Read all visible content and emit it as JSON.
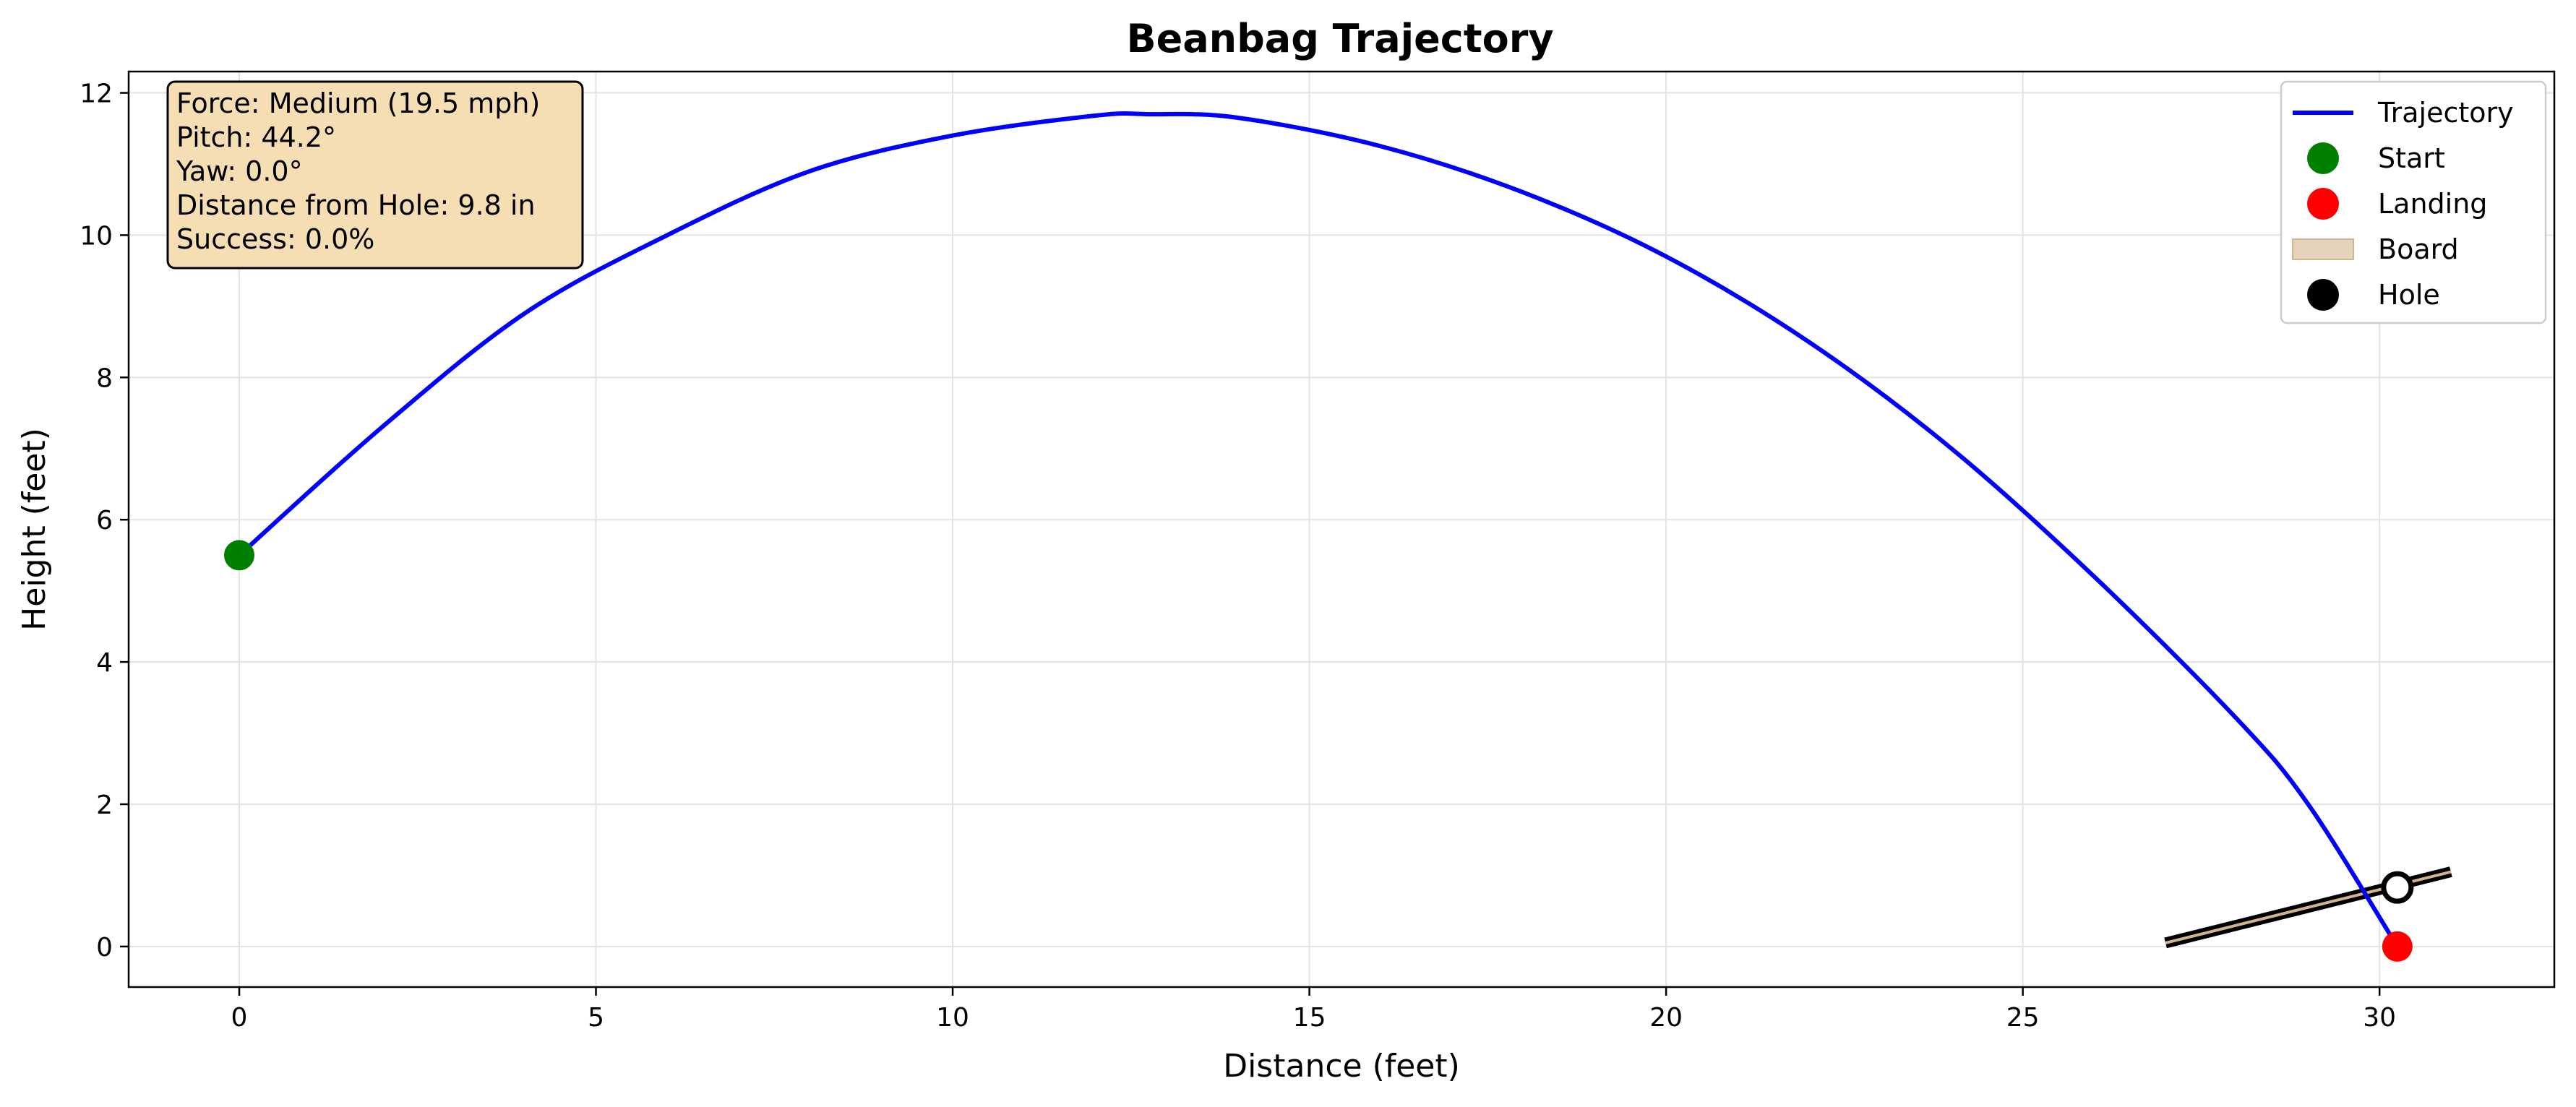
{
  "chart_data": {
    "type": "line",
    "title": "Beanbag Trajectory",
    "xlabel": "Distance (feet)",
    "ylabel": "Height (feet)",
    "xlim": [
      -1.55,
      32.45
    ],
    "ylim": [
      -0.57,
      12.3
    ],
    "x_ticks": [
      0,
      5,
      10,
      15,
      20,
      25,
      30
    ],
    "y_ticks": [
      0,
      2,
      4,
      6,
      8,
      10,
      12
    ],
    "grid": true,
    "legend_position": "top-right",
    "series": [
      {
        "name": "Trajectory",
        "color": "#0000ff",
        "x": [
          0,
          2,
          4,
          6,
          8,
          10,
          12,
          12.75,
          14,
          16,
          18,
          20,
          22,
          24,
          26,
          28,
          29,
          30.25
        ],
        "y": [
          5.5,
          7.3,
          8.9,
          10.0,
          10.9,
          11.4,
          11.68,
          11.7,
          11.65,
          11.25,
          10.6,
          9.7,
          8.5,
          7.0,
          5.2,
          3.2,
          2.0,
          0.0
        ]
      }
    ],
    "markers": [
      {
        "name": "Start",
        "x": 0,
        "y": 5.5,
        "color": "#008000"
      },
      {
        "name": "Landing",
        "x": 30.25,
        "y": 0.0,
        "color": "#ff0000"
      },
      {
        "name": "Hole",
        "x": 30.25,
        "y": 0.83,
        "color": "#000000"
      }
    ],
    "board": {
      "name": "Board",
      "x": [
        27.0,
        31.0
      ],
      "y": [
        0.05,
        1.05
      ],
      "color": "#d2b48c"
    },
    "legend": [
      {
        "label": "Trajectory",
        "kind": "line",
        "color": "#0000ff"
      },
      {
        "label": "Start",
        "kind": "dot",
        "color": "#008000"
      },
      {
        "label": "Landing",
        "kind": "dot",
        "color": "#ff0000"
      },
      {
        "label": "Board",
        "kind": "patch",
        "color": "#d2b48c"
      },
      {
        "label": "Hole",
        "kind": "dot",
        "color": "#000000"
      }
    ],
    "info_box": {
      "lines": [
        "Force: Medium (19.5 mph)",
        "Pitch: 44.2°",
        "Yaw: 0.0°",
        "Distance from Hole: 9.8 in",
        "Success: 0.0%"
      ],
      "background": "#f5deb3"
    }
  }
}
